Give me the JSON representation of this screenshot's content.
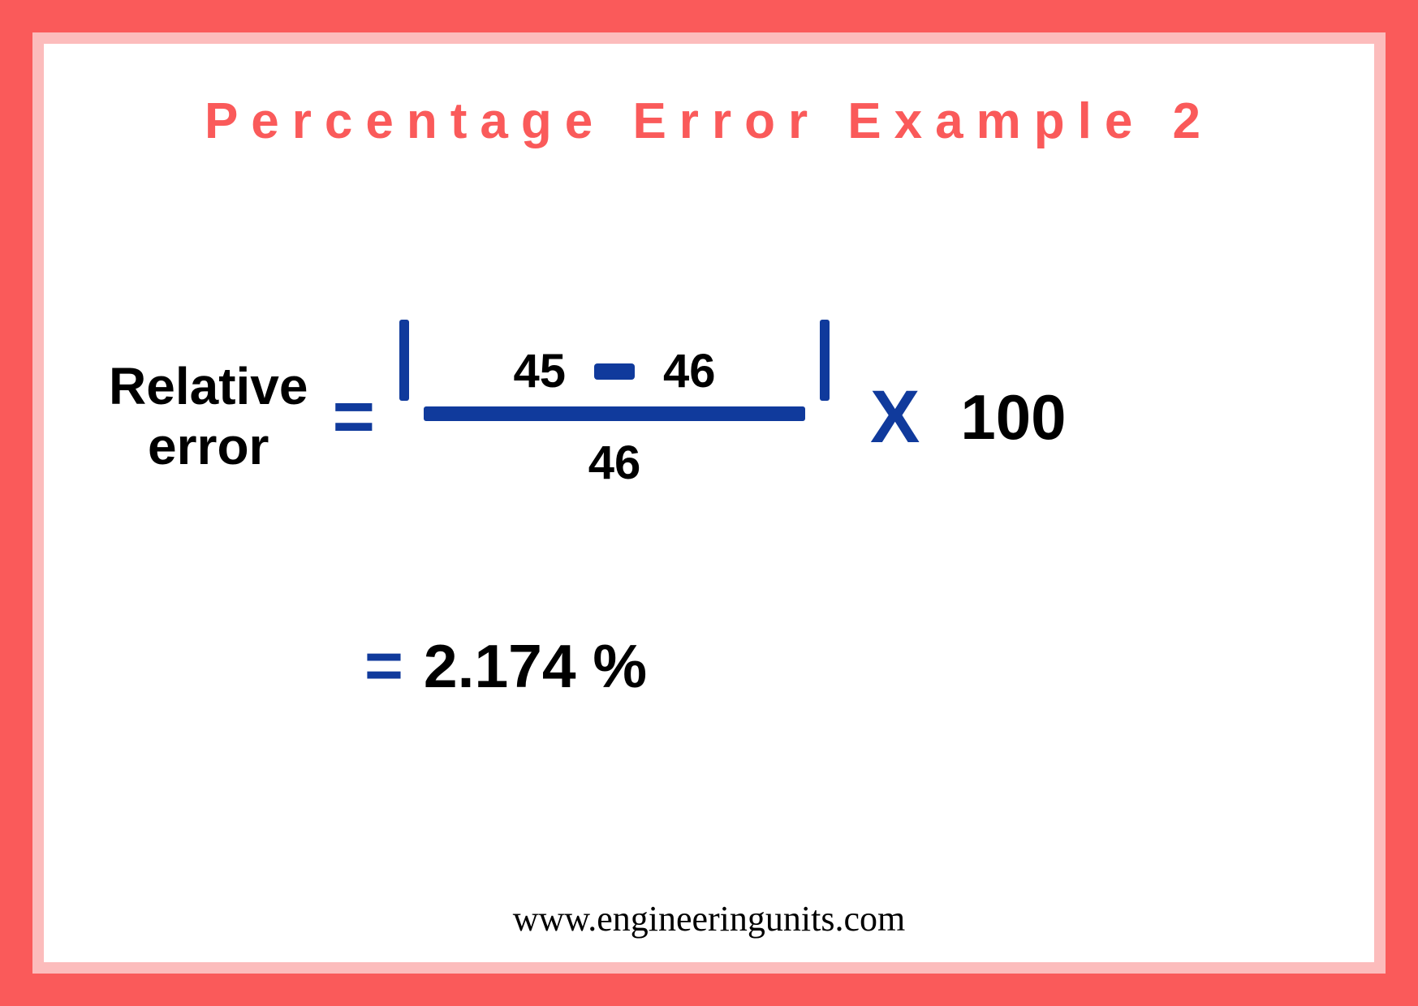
{
  "colors": {
    "outer_border": "#fa5a5a",
    "inner_border": "#fcbcbc",
    "background": "#ffffff",
    "title": "#fa5a5a",
    "accent": "#103a9c",
    "text": "#000000"
  },
  "title": "Percentage Error Example 2",
  "formula": {
    "label_line1": "Relative",
    "label_line2": "error",
    "equals": "=",
    "numerator_left": "45",
    "numerator_right": "46",
    "denominator": "46",
    "times": "X",
    "multiplier": "100"
  },
  "result": {
    "equals": "=",
    "value": "2.174 %"
  },
  "footer": "www.engineeringunits.com",
  "layout": {
    "title_fontsize": 62,
    "title_letterspacing": 16,
    "label_fontsize": 64,
    "numerator_fontsize": 58,
    "result_fontsize": 75,
    "footer_fontsize": 44,
    "frac_line_width": 470,
    "frac_line_height": 18,
    "abs_bar_width": 12,
    "abs_bar_height": 100
  }
}
